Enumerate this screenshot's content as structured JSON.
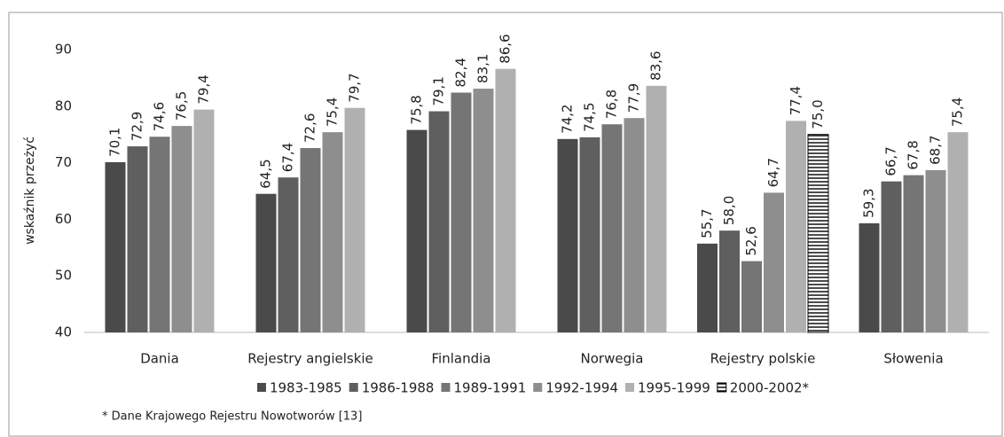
{
  "chart_data": {
    "type": "bar",
    "y_label": "wskaźnik przeżyć",
    "footnote": "* Dane Krajowego Rejestru Nowotworów [13]",
    "categories": [
      "Dania",
      "Rejestry angielskie",
      "Finlandia",
      "Norwegia",
      "Rejestry polskie",
      "Słowenia"
    ],
    "series": [
      {
        "name": "1983-1985",
        "color": "#4a4a4a",
        "values": [
          70.1,
          64.5,
          75.8,
          74.2,
          55.7,
          59.3
        ],
        "value_labels": [
          "70,1",
          "64,5",
          "75,8",
          "74,2",
          "55,7",
          "59,3"
        ]
      },
      {
        "name": "1986-1988",
        "color": "#5f5f5f",
        "values": [
          72.9,
          67.4,
          79.1,
          74.5,
          58.0,
          66.7
        ],
        "value_labels": [
          "72,9",
          "67,4",
          "79,1",
          "74,5",
          "58,0",
          "66,7"
        ]
      },
      {
        "name": "1989-1991",
        "color": "#757575",
        "values": [
          74.6,
          72.6,
          82.4,
          76.8,
          52.6,
          67.8
        ],
        "value_labels": [
          "74,6",
          "72,6",
          "82,4",
          "76,8",
          "52,6",
          "67,8"
        ]
      },
      {
        "name": "1992-1994",
        "color": "#8e8e8e",
        "values": [
          76.5,
          75.4,
          83.1,
          77.9,
          64.7,
          68.7
        ],
        "value_labels": [
          "76,5",
          "75,4",
          "83,1",
          "77,9",
          "64,7",
          "68,7"
        ]
      },
      {
        "name": "1995-1999",
        "color": "#b0b0b0",
        "values": [
          79.4,
          79.7,
          86.6,
          83.6,
          77.4,
          75.4
        ],
        "value_labels": [
          "79,4",
          "79,7",
          "86,6",
          "83,6",
          "77,4",
          "75,4"
        ]
      },
      {
        "name": "2000-2002*",
        "color": "#000000",
        "pattern": "horizontal-lines",
        "values": [
          null,
          null,
          null,
          null,
          75.0,
          null
        ],
        "value_labels": [
          null,
          null,
          null,
          null,
          "75,0",
          null
        ]
      }
    ],
    "ylim": [
      40,
      90
    ],
    "yticks": [
      40,
      50,
      60,
      70,
      80,
      90
    ],
    "grid": false,
    "legend": "bottom"
  }
}
